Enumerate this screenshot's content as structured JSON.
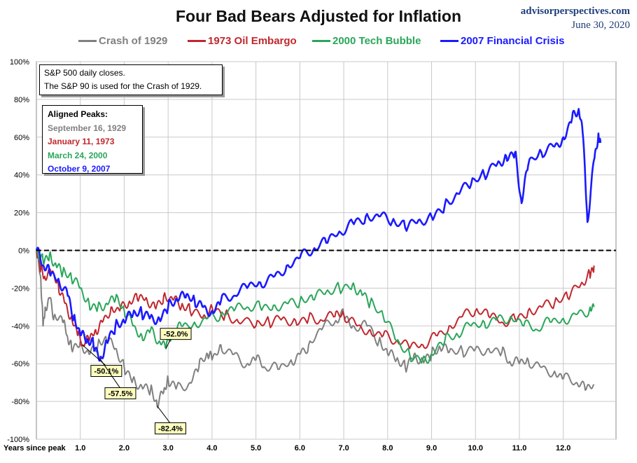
{
  "header": {
    "title": "Four Bad Bears Adjusted for Inflation",
    "site": "advisorperspectives.com",
    "date": "June 30, 2020"
  },
  "notes": {
    "line1": "S&P 500 daily closes.",
    "line2": "The S&P 90 is used for the Crash of 1929.",
    "peaks_title": "Aligned Peaks:",
    "peaks": [
      {
        "label": "September 16, 1929",
        "color": "#808080"
      },
      {
        "label": "January 11, 1973",
        "color": "#c0272d"
      },
      {
        "label": "March 24, 2000",
        "color": "#2aa65a"
      },
      {
        "label": "October 9, 2007",
        "color": "#1a1aff"
      }
    ]
  },
  "chart_data": {
    "type": "line",
    "xlabel": "Years since peak",
    "xlim": [
      0,
      13.2
    ],
    "ylim": [
      -100,
      100
    ],
    "xticks": [
      1,
      2,
      3,
      4,
      5,
      6,
      7,
      8,
      9,
      10,
      11,
      12
    ],
    "xtick_labels": [
      "1.0",
      "2.0",
      "3.0",
      "4.0",
      "5.0",
      "6.0",
      "7.0",
      "8.0",
      "9.0",
      "10.0",
      "11.0",
      "12.0"
    ],
    "yticks": [
      -100,
      -80,
      -60,
      -40,
      -20,
      0,
      20,
      40,
      60,
      80,
      100
    ],
    "ytick_labels": [
      "-100%",
      "-80%",
      "-60%",
      "-40%",
      "-20%",
      "0%",
      "20%",
      "40%",
      "60%",
      "80%",
      "100%"
    ],
    "grid": true,
    "zero_line": "dashed",
    "legend_position": "top",
    "series": [
      {
        "name": "Crash of 1929",
        "color": "#808080",
        "points": [
          [
            0,
            0
          ],
          [
            0.1,
            -15
          ],
          [
            0.15,
            -40
          ],
          [
            0.2,
            -30
          ],
          [
            0.3,
            -25
          ],
          [
            0.4,
            -35
          ],
          [
            0.6,
            -38
          ],
          [
            0.7,
            -45
          ],
          [
            0.8,
            -52
          ],
          [
            1.0,
            -48
          ],
          [
            1.2,
            -55
          ],
          [
            1.4,
            -50
          ],
          [
            1.6,
            -48
          ],
          [
            1.8,
            -52
          ],
          [
            2.0,
            -62
          ],
          [
            2.2,
            -68
          ],
          [
            2.4,
            -72
          ],
          [
            2.6,
            -74
          ],
          [
            2.75,
            -82.4
          ],
          [
            2.9,
            -75
          ],
          [
            3.0,
            -68
          ],
          [
            3.2,
            -72
          ],
          [
            3.5,
            -70
          ],
          [
            3.7,
            -62
          ],
          [
            3.9,
            -55
          ],
          [
            4.0,
            -58
          ],
          [
            4.2,
            -50
          ],
          [
            4.5,
            -55
          ],
          [
            4.8,
            -60
          ],
          [
            5.0,
            -58
          ],
          [
            5.2,
            -62
          ],
          [
            5.5,
            -63
          ],
          [
            5.8,
            -58
          ],
          [
            6.0,
            -55
          ],
          [
            6.2,
            -50
          ],
          [
            6.5,
            -42
          ],
          [
            6.8,
            -38
          ],
          [
            7.0,
            -34
          ],
          [
            7.2,
            -40
          ],
          [
            7.5,
            -38
          ],
          [
            7.8,
            -48
          ],
          [
            8.0,
            -55
          ],
          [
            8.2,
            -58
          ],
          [
            8.4,
            -62
          ],
          [
            8.6,
            -55
          ],
          [
            8.8,
            -58
          ],
          [
            9.0,
            -55
          ],
          [
            9.2,
            -52
          ],
          [
            9.4,
            -54
          ],
          [
            9.7,
            -53
          ],
          [
            10.0,
            -52
          ],
          [
            10.3,
            -52
          ],
          [
            10.6,
            -54
          ],
          [
            10.8,
            -60
          ],
          [
            11.0,
            -60
          ],
          [
            11.2,
            -58
          ],
          [
            11.5,
            -62
          ],
          [
            11.8,
            -64
          ],
          [
            12.0,
            -68
          ],
          [
            12.3,
            -70
          ],
          [
            12.5,
            -74
          ],
          [
            12.7,
            -71
          ]
        ]
      },
      {
        "name": "1973 Oil Embargo",
        "color": "#c0272d",
        "points": [
          [
            0,
            0
          ],
          [
            0.1,
            -10
          ],
          [
            0.2,
            -15
          ],
          [
            0.35,
            -12
          ],
          [
            0.5,
            -18
          ],
          [
            0.65,
            -28
          ],
          [
            0.8,
            -35
          ],
          [
            0.95,
            -45
          ],
          [
            1.05,
            -50.1
          ],
          [
            1.2,
            -48
          ],
          [
            1.35,
            -42
          ],
          [
            1.5,
            -38
          ],
          [
            1.7,
            -30
          ],
          [
            1.9,
            -32
          ],
          [
            2.1,
            -28
          ],
          [
            2.3,
            -26
          ],
          [
            2.5,
            -25
          ],
          [
            2.7,
            -30
          ],
          [
            2.9,
            -24
          ],
          [
            3.1,
            -26
          ],
          [
            3.3,
            -30
          ],
          [
            3.5,
            -32
          ],
          [
            3.8,
            -35
          ],
          [
            4.0,
            -30
          ],
          [
            4.3,
            -34
          ],
          [
            4.6,
            -38
          ],
          [
            5.0,
            -40
          ],
          [
            5.3,
            -38
          ],
          [
            5.6,
            -36
          ],
          [
            5.9,
            -37
          ],
          [
            6.2,
            -36
          ],
          [
            6.5,
            -37
          ],
          [
            6.8,
            -35
          ],
          [
            7.0,
            -34
          ],
          [
            7.3,
            -40
          ],
          [
            7.6,
            -42
          ],
          [
            7.9,
            -45
          ],
          [
            8.2,
            -48
          ],
          [
            8.5,
            -52
          ],
          [
            8.8,
            -50
          ],
          [
            9.1,
            -45
          ],
          [
            9.4,
            -40
          ],
          [
            9.7,
            -35
          ],
          [
            10.0,
            -32
          ],
          [
            10.3,
            -35
          ],
          [
            10.6,
            -38
          ],
          [
            10.9,
            -36
          ],
          [
            11.2,
            -32
          ],
          [
            11.5,
            -30
          ],
          [
            11.8,
            -28
          ],
          [
            12.1,
            -25
          ],
          [
            12.4,
            -18
          ],
          [
            12.6,
            -12
          ],
          [
            12.7,
            -8
          ]
        ]
      },
      {
        "name": "2000 Tech Bubble",
        "color": "#2aa65a",
        "points": [
          [
            0,
            0
          ],
          [
            0.15,
            -5
          ],
          [
            0.3,
            -2
          ],
          [
            0.45,
            -8
          ],
          [
            0.6,
            -12
          ],
          [
            0.8,
            -15
          ],
          [
            1.0,
            -20
          ],
          [
            1.2,
            -28
          ],
          [
            1.4,
            -30
          ],
          [
            1.6,
            -28
          ],
          [
            1.8,
            -26
          ],
          [
            2.0,
            -32
          ],
          [
            2.2,
            -40
          ],
          [
            2.4,
            -45
          ],
          [
            2.6,
            -42
          ],
          [
            2.8,
            -48
          ],
          [
            2.95,
            -52.0
          ],
          [
            3.1,
            -45
          ],
          [
            3.3,
            -40
          ],
          [
            3.6,
            -38
          ],
          [
            3.9,
            -36
          ],
          [
            4.2,
            -34
          ],
          [
            4.5,
            -32
          ],
          [
            4.8,
            -30
          ],
          [
            5.1,
            -30
          ],
          [
            5.4,
            -29
          ],
          [
            5.7,
            -28
          ],
          [
            6.0,
            -27
          ],
          [
            6.3,
            -26
          ],
          [
            6.6,
            -22
          ],
          [
            6.9,
            -20
          ],
          [
            7.2,
            -18
          ],
          [
            7.4,
            -22
          ],
          [
            7.6,
            -28
          ],
          [
            7.9,
            -35
          ],
          [
            8.2,
            -48
          ],
          [
            8.5,
            -55
          ],
          [
            8.8,
            -58
          ],
          [
            9.0,
            -55
          ],
          [
            9.3,
            -48
          ],
          [
            9.6,
            -45
          ],
          [
            9.9,
            -40
          ],
          [
            10.2,
            -38
          ],
          [
            10.5,
            -36
          ],
          [
            10.8,
            -35
          ],
          [
            11.1,
            -40
          ],
          [
            11.4,
            -42
          ],
          [
            11.7,
            -38
          ],
          [
            12.0,
            -36
          ],
          [
            12.3,
            -34
          ],
          [
            12.6,
            -31
          ],
          [
            12.7,
            -30
          ]
        ]
      },
      {
        "name": "2007 Financial Crisis",
        "color": "#1a1aff",
        "points": [
          [
            0,
            0
          ],
          [
            0.15,
            -8
          ],
          [
            0.3,
            -12
          ],
          [
            0.5,
            -15
          ],
          [
            0.7,
            -22
          ],
          [
            0.85,
            -35
          ],
          [
            1.0,
            -45
          ],
          [
            1.15,
            -48
          ],
          [
            1.3,
            -50
          ],
          [
            1.45,
            -57.5
          ],
          [
            1.6,
            -48
          ],
          [
            1.8,
            -40
          ],
          [
            2.0,
            -38
          ],
          [
            2.2,
            -34
          ],
          [
            2.4,
            -33
          ],
          [
            2.6,
            -35
          ],
          [
            2.8,
            -36
          ],
          [
            3.0,
            -30
          ],
          [
            3.2,
            -26
          ],
          [
            3.4,
            -25
          ],
          [
            3.6,
            -26
          ],
          [
            3.8,
            -30
          ],
          [
            4.0,
            -32
          ],
          [
            4.2,
            -27
          ],
          [
            4.5,
            -24
          ],
          [
            4.8,
            -20
          ],
          [
            5.1,
            -17
          ],
          [
            5.4,
            -14
          ],
          [
            5.7,
            -8
          ],
          [
            6.0,
            -4
          ],
          [
            6.3,
            0
          ],
          [
            6.6,
            4
          ],
          [
            6.9,
            10
          ],
          [
            7.2,
            15
          ],
          [
            7.5,
            18
          ],
          [
            7.8,
            18
          ],
          [
            8.1,
            15
          ],
          [
            8.4,
            12
          ],
          [
            8.7,
            16
          ],
          [
            9.0,
            18
          ],
          [
            9.3,
            24
          ],
          [
            9.6,
            30
          ],
          [
            9.9,
            35
          ],
          [
            10.2,
            40
          ],
          [
            10.5,
            46
          ],
          [
            10.7,
            50
          ],
          [
            10.9,
            52
          ],
          [
            11.05,
            25
          ],
          [
            11.2,
            45
          ],
          [
            11.5,
            52
          ],
          [
            11.8,
            55
          ],
          [
            12.0,
            60
          ],
          [
            12.2,
            70
          ],
          [
            12.35,
            75
          ],
          [
            12.45,
            60
          ],
          [
            12.55,
            15
          ],
          [
            12.7,
            48
          ],
          [
            12.8,
            62
          ],
          [
            12.85,
            57
          ]
        ]
      }
    ],
    "annotations": [
      {
        "text": "-50.1%",
        "x": 1.05,
        "y": -50.1,
        "color": "#c0272d"
      },
      {
        "text": "-57.5%",
        "x": 1.45,
        "y": -57.5,
        "color": "#1a1aff"
      },
      {
        "text": "-82.4%",
        "x": 2.75,
        "y": -82.4,
        "color": "#808080"
      },
      {
        "text": "-52.0%",
        "x": 2.95,
        "y": -52.0,
        "color": "#2aa65a"
      }
    ]
  }
}
